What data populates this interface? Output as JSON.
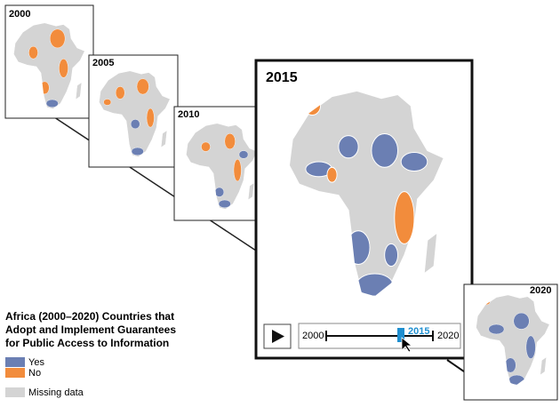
{
  "frames": [
    {
      "year": "2000"
    },
    {
      "year": "2005"
    },
    {
      "year": "2010"
    },
    {
      "year": "2015"
    },
    {
      "year": "2020"
    }
  ],
  "player": {
    "start": "2000",
    "current": "2015",
    "end": "2020"
  },
  "legend": {
    "title_lines": [
      "Africa (2000–2020) Countries that",
      "Adopt and Implement Guarantees",
      "for Public Access to Information"
    ],
    "items": [
      {
        "label": "Yes",
        "color": "#6b7fb3"
      },
      {
        "label": "No",
        "color": "#f28c3c"
      },
      {
        "label": "Missing data",
        "color": "#d4d4d4"
      }
    ]
  }
}
